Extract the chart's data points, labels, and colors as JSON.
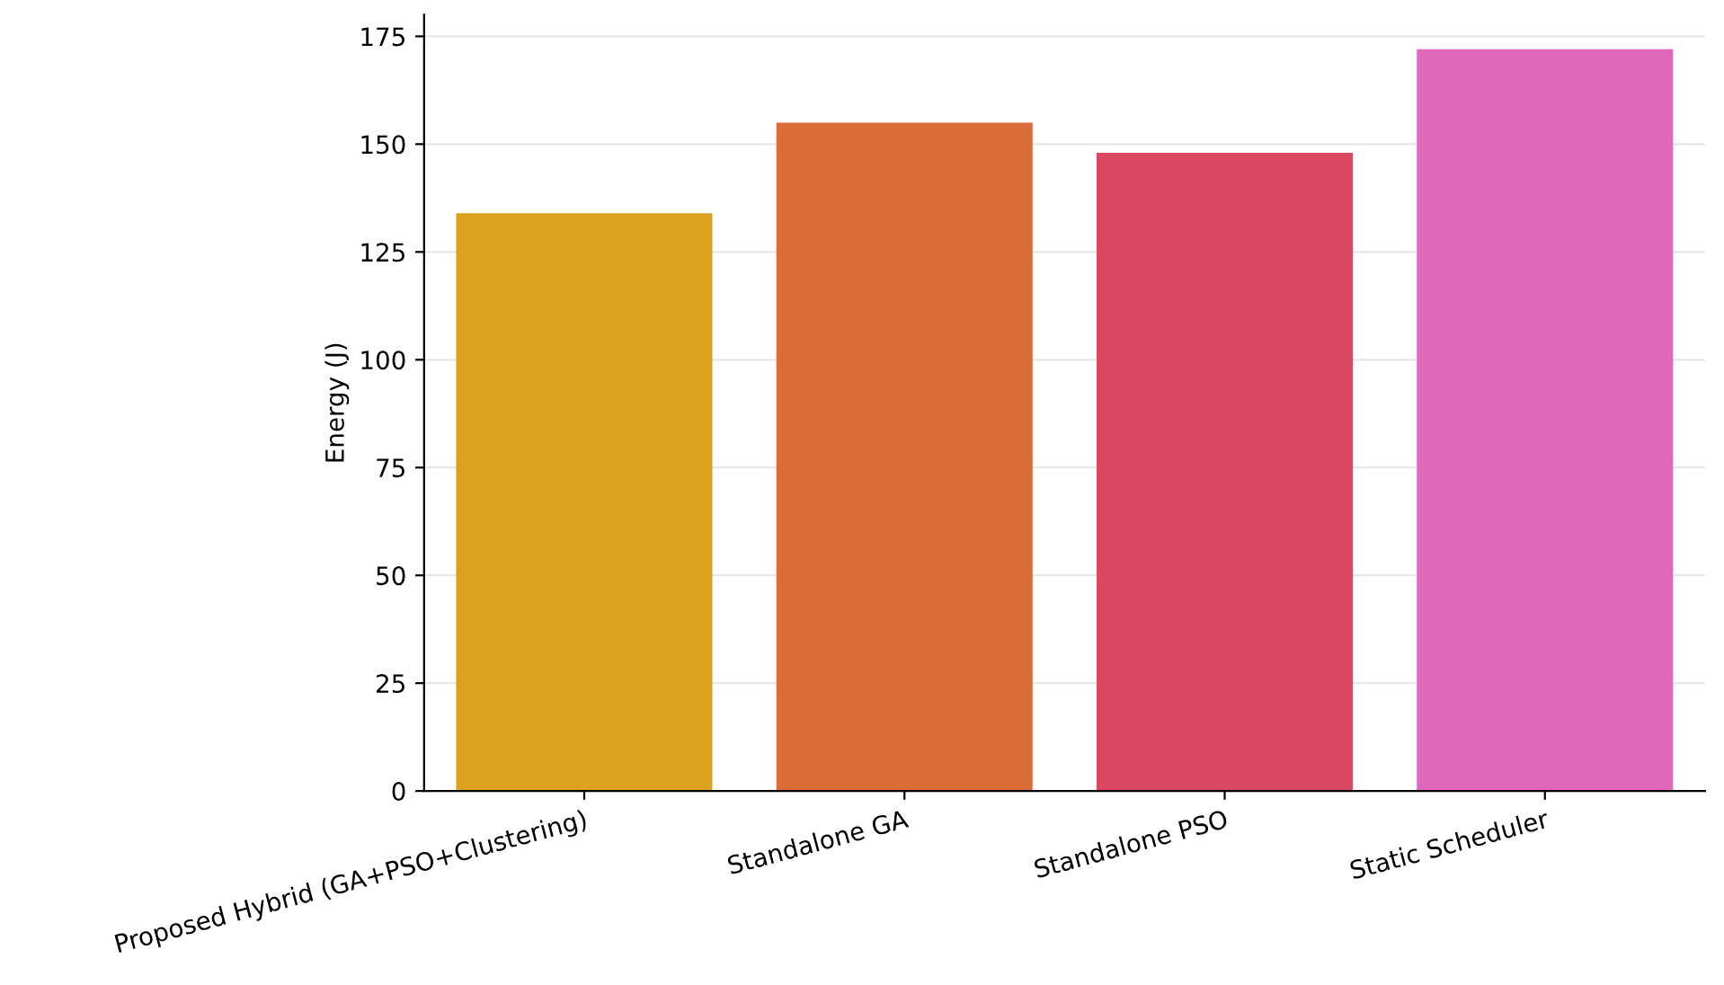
{
  "chart_data": {
    "type": "bar",
    "ylabel": "Energy (J)",
    "categories": [
      "Proposed Hybrid (GA+PSO+Clustering)",
      "Standalone GA",
      "Standalone PSO",
      "Static Scheduler"
    ],
    "values": [
      134,
      155,
      148,
      172
    ],
    "colors": [
      "#dca21f",
      "#d96c37",
      "#dc4862",
      "#df68bb"
    ],
    "ylim": [
      0,
      180
    ],
    "yticks": [
      0,
      25,
      50,
      75,
      100,
      125,
      150,
      175
    ],
    "grid": "y"
  }
}
